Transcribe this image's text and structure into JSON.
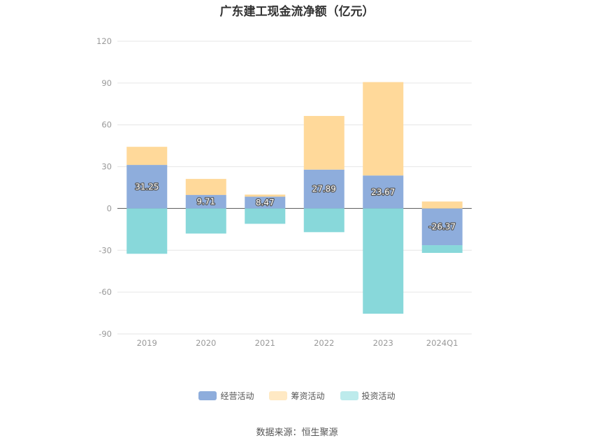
{
  "chart_data": {
    "type": "bar",
    "stacked": true,
    "title": "广东建工现金流净额（亿元）",
    "categories": [
      "2019",
      "2020",
      "2021",
      "2022",
      "2023",
      "2024Q1"
    ],
    "series": [
      {
        "name": "经营活动",
        "values": [
          31.25,
          9.71,
          8.47,
          27.89,
          23.67,
          -26.37
        ],
        "color": "#8EADDC"
      },
      {
        "name": "筹资活动",
        "values": [
          13.0,
          11.5,
          1.5,
          38.5,
          67.0,
          5.0
        ],
        "color": "#FFD99A"
      },
      {
        "name": "投资活动",
        "values": [
          -32.5,
          -18.0,
          -11.0,
          -17.0,
          -75.5,
          -5.5
        ],
        "color": "#88D8DA"
      }
    ],
    "data_labels": [
      "31.25",
      "9.71",
      "8.47",
      "27.89",
      "23.67",
      "-26.37"
    ],
    "yticks": [
      120,
      90,
      60,
      30,
      0,
      -30,
      -60,
      -90
    ],
    "ylim": [
      -90,
      120
    ],
    "grid": true,
    "legend_position": "bottom"
  },
  "legend": [
    "经营活动",
    "筹资活动",
    "投资活动"
  ],
  "source": "数据来源：恒生聚源"
}
